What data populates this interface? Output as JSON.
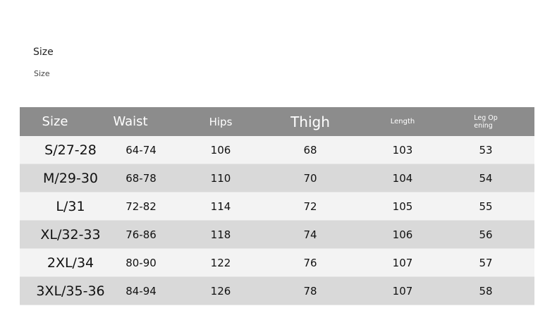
{
  "heading": "Size",
  "subheading": "Size",
  "colors": {
    "header_bg": "#8c8c8c",
    "row_light": "#f3f3f3",
    "row_dark": "#d9d9d9"
  },
  "table": {
    "headers": [
      "Size",
      "Waist",
      "Hips",
      "Thigh",
      "Length",
      "Leg Op\nening"
    ],
    "rows": [
      [
        "S/27-28",
        "64-74",
        "106",
        "68",
        "103",
        "53"
      ],
      [
        "M/29-30",
        "68-78",
        "110",
        "70",
        "104",
        "54"
      ],
      [
        "L/31",
        "72-82",
        "114",
        "72",
        "105",
        "55"
      ],
      [
        "XL/32-33",
        "76-86",
        "118",
        "74",
        "106",
        "56"
      ],
      [
        "2XL/34",
        "80-90",
        "122",
        "76",
        "107",
        "57"
      ],
      [
        "3XL/35-36",
        "84-94",
        "126",
        "78",
        "107",
        "58"
      ]
    ]
  }
}
